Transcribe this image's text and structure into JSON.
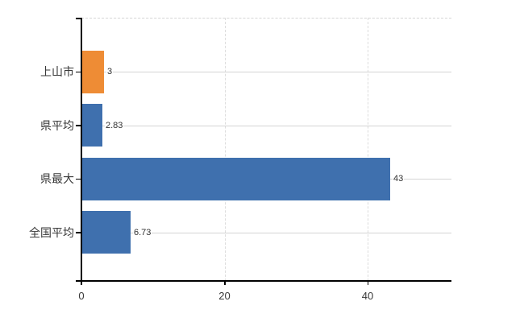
{
  "chart_data": {
    "type": "bar",
    "orientation": "horizontal",
    "title": "",
    "xlabel": "",
    "ylabel": "",
    "categories": [
      "上山市",
      "県平均",
      "県最大",
      "全国平均"
    ],
    "values": [
      3,
      2.83,
      43,
      6.73
    ],
    "value_labels": [
      "3",
      "2.83",
      "43",
      "6.73"
    ],
    "x_ticks": [
      0,
      20,
      40
    ],
    "x_tick_labels": [
      "0",
      "20",
      "40"
    ],
    "xlim": [
      0,
      51.7
    ],
    "grid": true,
    "legend_position": "none",
    "bar_colors": [
      "#EE8C35",
      "#3F70AE",
      "#3F70AE",
      "#3F70AE"
    ],
    "colors": {
      "highlight_bar": "#EE8C35",
      "default_bar": "#3F70AE",
      "grid_line": "#D6D6D6",
      "axis_line": "#000000",
      "text": "#383838"
    }
  }
}
